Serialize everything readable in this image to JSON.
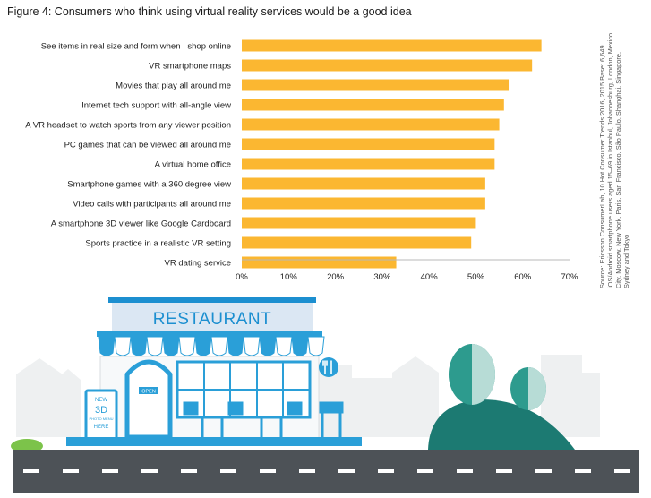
{
  "figure": {
    "title": "Figure 4: Consumers who think using virtual reality services would be a good idea",
    "source": "Source: Ericsson ConsumerLab, 10 Hot Consumer Trends 2016, 2015 Base: 6,649 iOS/Android smartphone users aged 15–69 in Istanbul, Johannesburg, London, Mexico City, Moscow, New York, Paris, San Francisco, São Paulo, Shanghai, Singapore, Sydney and Tokyo"
  },
  "chart_data": {
    "type": "bar",
    "orientation": "horizontal",
    "title": "Figure 4: Consumers who think using virtual reality services would be a good idea",
    "categories": [
      "See items in real size and form when I shop online",
      "VR smartphone maps",
      "Movies that play all around me",
      "Internet tech support with all-angle view",
      "A VR headset to watch sports from any viewer position",
      "PC games that can be viewed all around me",
      "A virtual home office",
      "Smartphone games with a 360 degree view",
      "Video calls with participants all around me",
      "A smartphone 3D viewer like Google Cardboard",
      "Sports practice in a realistic VR setting",
      "VR dating service"
    ],
    "values": [
      64,
      62,
      57,
      56,
      55,
      54,
      54,
      52,
      52,
      50,
      49,
      33
    ],
    "xlim": [
      0,
      70
    ],
    "xticks": [
      "0%",
      "10%",
      "20%",
      "30%",
      "40%",
      "50%",
      "60%",
      "70%"
    ],
    "grid": false,
    "bar_color": "#fbb731"
  },
  "illustration": {
    "sign_text": "RESTAURANT",
    "door_sign": "OPEN",
    "board_lines": [
      "NEW",
      "3D",
      "PHOTO MENU",
      "HERE"
    ],
    "colors": {
      "awning_blue": "#2a9fd8",
      "sign_blue": "#1c8fd0",
      "road": "#4d5257",
      "tree_teal": "#2d9b8e",
      "bush": "#1c7a72",
      "grass": "#7cc34a"
    }
  }
}
